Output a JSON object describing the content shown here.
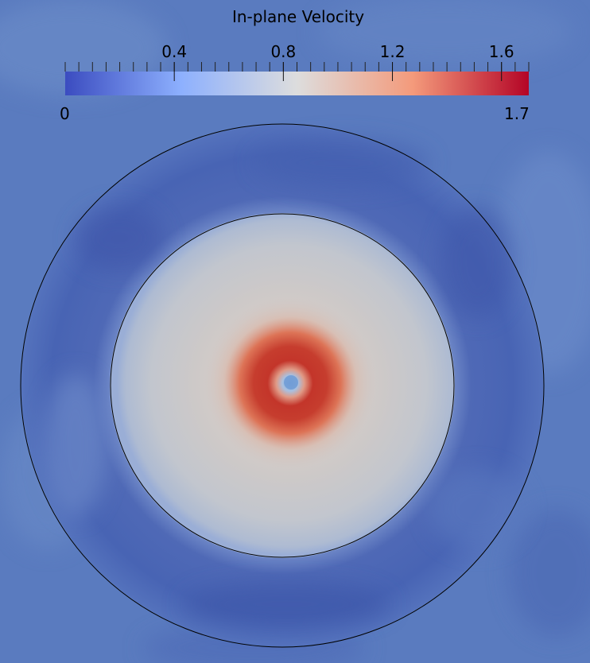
{
  "colorbar": {
    "title": "In-plane Velocity",
    "min_label": "0",
    "max_label": "1.7",
    "min": 0,
    "max": 1.7,
    "tick_labels": [
      {
        "value": 0.4,
        "text": "0.4"
      },
      {
        "value": 0.8,
        "text": "0.8"
      },
      {
        "value": 1.2,
        "text": "1.2"
      },
      {
        "value": 1.6,
        "text": "1.6"
      }
    ],
    "colormap": [
      "#3b4cc0",
      "#8db0fe",
      "#dddddd",
      "#f49a7b",
      "#b40426"
    ]
  },
  "field_colors": {
    "background": "#5a7bbf",
    "outer_ring": "#4a66b4",
    "inner_disk": "#c3c7cf",
    "vortex_ring": "#c4402f",
    "vortex_core": "#7ca7d8"
  }
}
